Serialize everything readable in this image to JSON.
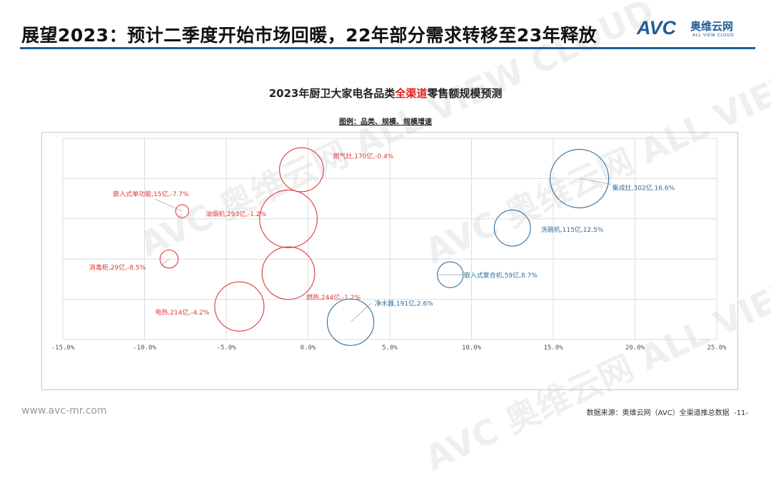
{
  "header": {
    "title": "展望2023：预计二季度开始市场回暖，22年部分需求转移至23年释放",
    "logo": {
      "mark": "AVC",
      "name_cn": "奥维云网",
      "name_en": "ALL VIEW CLOUD"
    }
  },
  "watermark": "AVC 奥维云网 ALL VIEW CLOUD",
  "chart_data": {
    "type": "bubble",
    "title_parts": [
      "2023年厨卫大家电各品类",
      "全渠道",
      "零售额规模预测"
    ],
    "legend_note": "图例：品类、规模、规模增速",
    "xlabel": "",
    "ylabel": "",
    "xlim": [
      -15,
      25
    ],
    "ylim": [
      0,
      5
    ],
    "x_ticks": [
      "-15.0%",
      "-10.0%",
      "-5.0%",
      "0.0%",
      "5.0%",
      "10.0%",
      "15.0%",
      "20.0%",
      "25.0%"
    ],
    "grid": true,
    "colors": {
      "negative": "#d9393b",
      "positive": "#2f6f9f"
    },
    "points": [
      {
        "label": "燃气灶,170亿,-0.4%",
        "name": "燃气灶",
        "size": 170,
        "x": -0.4,
        "y": 4.22
      },
      {
        "label": "嵌入式单功能,15亿,-7.7%",
        "name": "嵌入式单功能",
        "size": 15,
        "x": -7.7,
        "y": 3.19
      },
      {
        "label": "油烟机,293亿,-1.2%",
        "name": "油烟机",
        "size": 293,
        "x": -1.2,
        "y": 3.0
      },
      {
        "label": "消毒柜,29亿,-8.5%",
        "name": "消毒柜",
        "size": 29,
        "x": -8.5,
        "y": 2.0
      },
      {
        "label": "燃热,244亿,-1.2%",
        "name": "燃热",
        "size": 244,
        "x": -1.2,
        "y": 1.65
      },
      {
        "label": "电热,214亿,-4.2%",
        "name": "电热",
        "size": 214,
        "x": -4.2,
        "y": 0.82
      },
      {
        "label": "净水器,191亿,2.6%",
        "name": "净水器",
        "size": 191,
        "x": 2.6,
        "y": 0.43
      },
      {
        "label": "嵌入式复合机,59亿,8.7%",
        "name": "嵌入式复合机",
        "size": 59,
        "x": 8.7,
        "y": 1.61
      },
      {
        "label": "洗碗机,115亿,12.5%",
        "name": "洗碗机",
        "size": 115,
        "x": 12.5,
        "y": 2.77
      },
      {
        "label": "集成灶,302亿,16.6%",
        "name": "集成灶",
        "size": 302,
        "x": 16.6,
        "y": 4.0
      }
    ]
  },
  "footer": {
    "url": "www.avc-mr.com",
    "source": "数据来源：奥维云网（AVC）全渠道推总数据",
    "page": "-11-"
  }
}
